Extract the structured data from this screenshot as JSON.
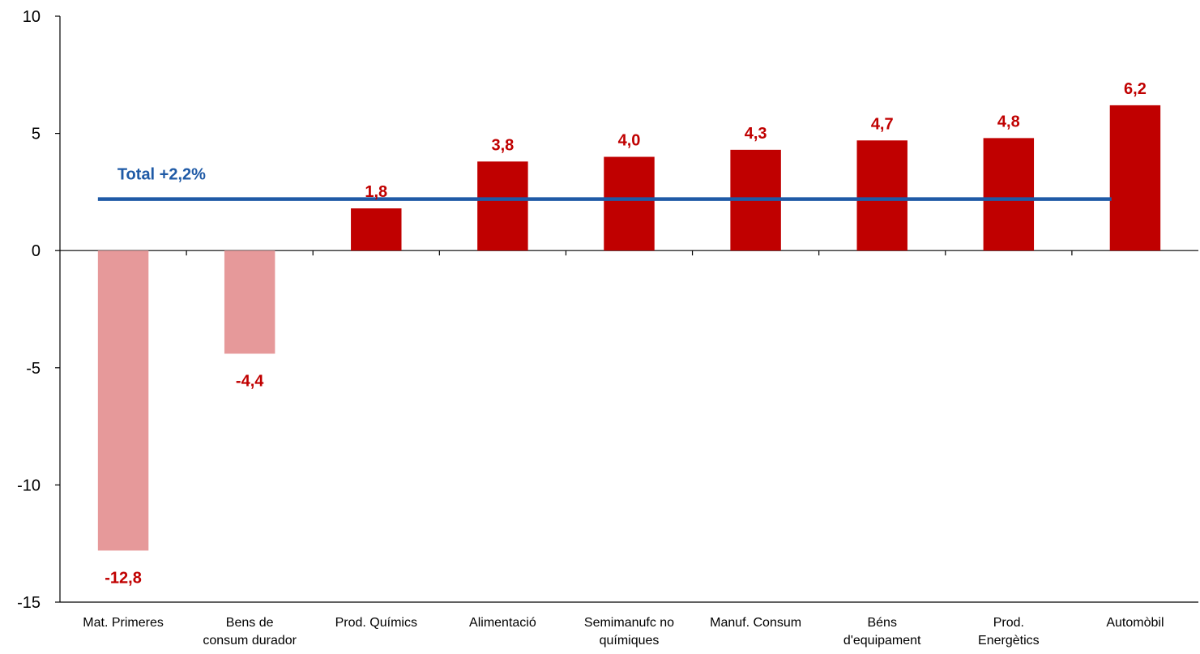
{
  "chart_data": {
    "type": "bar",
    "title": "",
    "xlabel": "",
    "ylabel": "",
    "ylim": [
      -15,
      10
    ],
    "yticks": [
      "10",
      "5",
      "0",
      "-5",
      "-10",
      "-15"
    ],
    "grid": false,
    "categories": [
      [
        "Mat. Primeres"
      ],
      [
        "Bens de",
        "consum durador"
      ],
      [
        "Prod. Químics"
      ],
      [
        "Alimentació"
      ],
      [
        "Semimanufc no",
        "químiques"
      ],
      [
        "Manuf. Consum"
      ],
      [
        "Béns",
        "d'equipament"
      ],
      [
        "Prod.",
        "Energètics"
      ],
      [
        "Automòbil"
      ]
    ],
    "values": [
      -12.8,
      -4.4,
      1.8,
      3.8,
      4.0,
      4.3,
      4.7,
      4.8,
      6.2
    ],
    "value_labels": [
      "-12,8",
      "-4,4",
      "1,8",
      "3,8",
      "4,0",
      "4,3",
      "4,7",
      "4,8",
      "6,2"
    ],
    "colors": {
      "positive": "#c00000",
      "negative": "#e6999a",
      "label": "#c00000",
      "total_line": "#1f5aa6"
    },
    "reference_line": {
      "value": 2.2,
      "label": "Total +2,2%"
    }
  }
}
